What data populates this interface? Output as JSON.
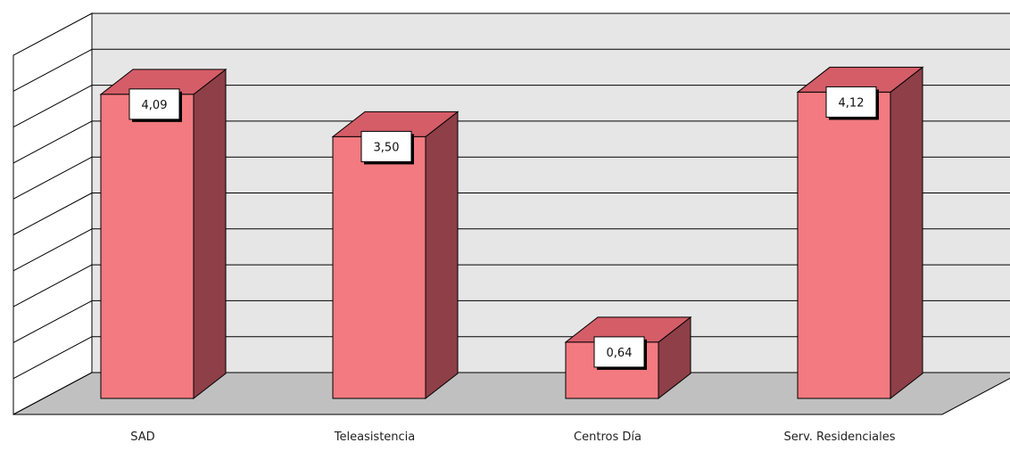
{
  "chart_data": {
    "type": "bar",
    "style": "3d-column",
    "categories": [
      "SAD",
      "Teleasistencia",
      "Centros Día",
      "Serv. Residenciales"
    ],
    "values": [
      4.09,
      3.5,
      0.64,
      4.12
    ],
    "value_labels": [
      "4,09",
      "3,50",
      "0,64",
      "4,12"
    ],
    "title": "",
    "xlabel": "",
    "ylabel": "",
    "ylim": [
      0,
      5
    ],
    "y_ticks_shown": false,
    "grid": true,
    "legend": "none"
  },
  "colors": {
    "bar_front": "#f27a80",
    "bar_top": "#d45d68",
    "bar_side": "#8e3f48",
    "back_wall": "#e6e6e6",
    "side_wall": "#ffffff",
    "floor": "#c0c0c0",
    "grid": "#000000"
  }
}
